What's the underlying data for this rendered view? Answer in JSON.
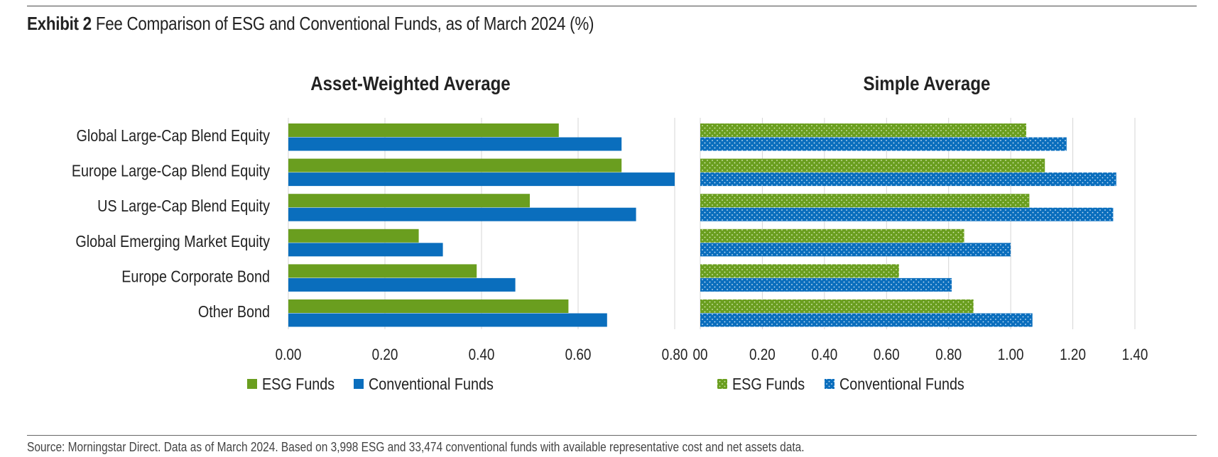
{
  "header": {
    "exhibit_label": "Exhibit 2",
    "title_text": "Fee Comparison of ESG and Conventional Funds, as of March 2024 (%)"
  },
  "footer": {
    "source": "Source: Morningstar Direct. Data as of March 2024. Based on 3,998 ESG and 33,474 conventional funds with available representative cost and net assets data."
  },
  "colors": {
    "esg": "#6a9e1f",
    "conventional": "#0a6ebd",
    "grid": "#d4d4d4",
    "text": "#222222"
  },
  "chart_data": [
    {
      "type": "bar",
      "orientation": "horizontal",
      "title": "Asset-Weighted Average",
      "categories": [
        "Global Large-Cap Blend Equity",
        "Europe Large-Cap Blend Equity",
        "US Large-Cap Blend Equity",
        "Global Emerging Market Equity",
        "Europe Corporate Bond",
        "Other Bond"
      ],
      "series": [
        {
          "name": "ESG Funds",
          "values": [
            0.56,
            0.69,
            0.5,
            0.27,
            0.39,
            0.58
          ]
        },
        {
          "name": "Conventional Funds",
          "values": [
            0.69,
            0.8,
            0.72,
            0.32,
            0.47,
            0.66
          ]
        }
      ],
      "xlim": [
        0,
        0.8
      ],
      "ticks": [
        "0.00",
        "0.20",
        "0.40",
        "0.60",
        "0.80"
      ],
      "tick_values": [
        0,
        0.2,
        0.4,
        0.6,
        0.8
      ],
      "grid": true,
      "legend": "bottom",
      "pattern": "solid"
    },
    {
      "type": "bar",
      "orientation": "horizontal",
      "title": "Simple Average",
      "categories": [
        "Global Large-Cap Blend Equity",
        "Europe Large-Cap Blend Equity",
        "US Large-Cap Blend Equity",
        "Global Emerging Market Equity",
        "Europe Corporate Bond",
        "Other Bond"
      ],
      "series": [
        {
          "name": "ESG Funds",
          "values": [
            1.05,
            1.11,
            1.06,
            0.85,
            0.64,
            0.88
          ]
        },
        {
          "name": "Conventional Funds",
          "values": [
            1.18,
            1.34,
            1.33,
            1.0,
            0.81,
            1.07
          ]
        }
      ],
      "xlim": [
        0,
        1.4
      ],
      "ticks": [
        "00",
        "0.20",
        "0.40",
        "0.60",
        "0.80",
        "1.00",
        "1.20",
        "1.40"
      ],
      "tick_values": [
        0,
        0.2,
        0.4,
        0.6,
        0.8,
        1.0,
        1.2,
        1.4
      ],
      "grid": true,
      "legend": "bottom",
      "pattern": "dotted"
    }
  ]
}
